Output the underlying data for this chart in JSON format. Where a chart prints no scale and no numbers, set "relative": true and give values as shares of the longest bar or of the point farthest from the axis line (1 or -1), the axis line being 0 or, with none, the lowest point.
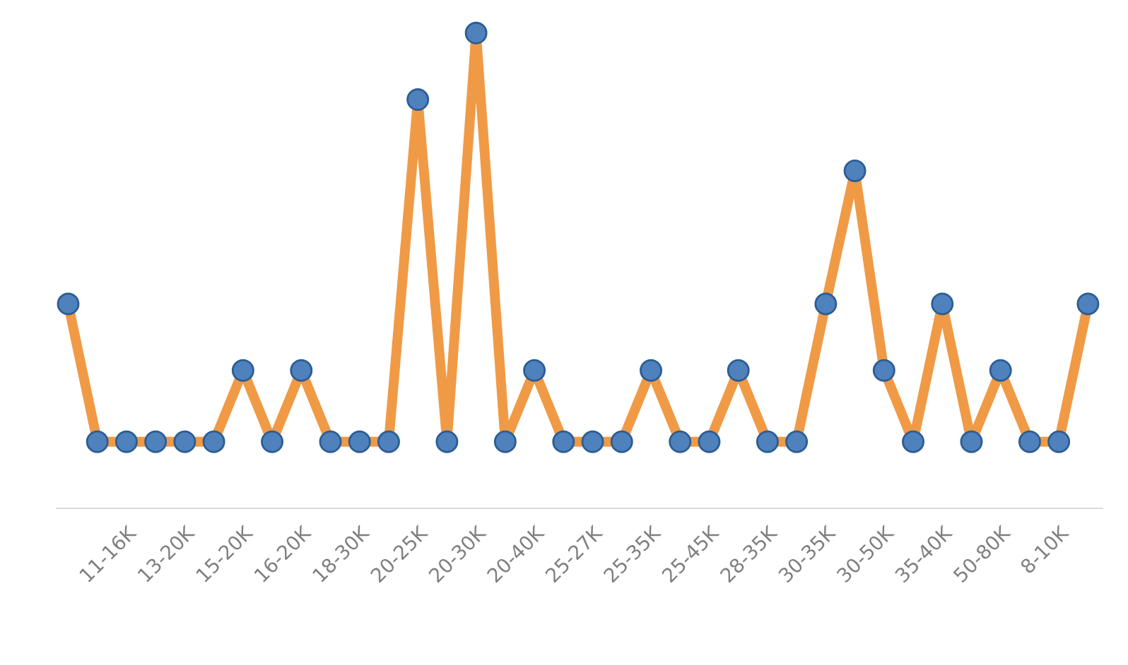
{
  "chart_data": {
    "type": "line",
    "relative": true,
    "marker": "circle",
    "line_style": "solid",
    "grid": false,
    "legend": false,
    "categories": [
      null,
      null,
      "11-16K",
      null,
      "13-20K",
      null,
      "15-20K",
      null,
      "16-20K",
      null,
      "18-30K",
      null,
      "20-25K",
      null,
      "20-30K",
      null,
      "20-40K",
      null,
      "25-27K",
      null,
      "25-35K",
      null,
      "25-45K",
      null,
      "28-35K",
      null,
      "30-35K",
      null,
      "30-50K",
      null,
      "35-40K",
      null,
      "50-80K",
      null,
      "8-10K",
      null
    ],
    "series": [
      {
        "color": "#f09a46",
        "values": [
          0.43,
          0.14,
          0.14,
          0.14,
          0.14,
          0.14,
          0.29,
          0.14,
          0.29,
          0.14,
          0.14,
          0.14,
          0.86,
          0.14,
          1,
          0.14,
          0.29,
          0.14,
          0.14,
          0.14,
          0.29,
          0.14,
          0.14,
          0.29,
          0.14,
          0.14,
          0.43,
          0.71,
          0.29,
          0.14,
          0.43,
          0.14,
          0.29,
          0.14,
          0.14,
          0.43
        ]
      }
    ]
  }
}
